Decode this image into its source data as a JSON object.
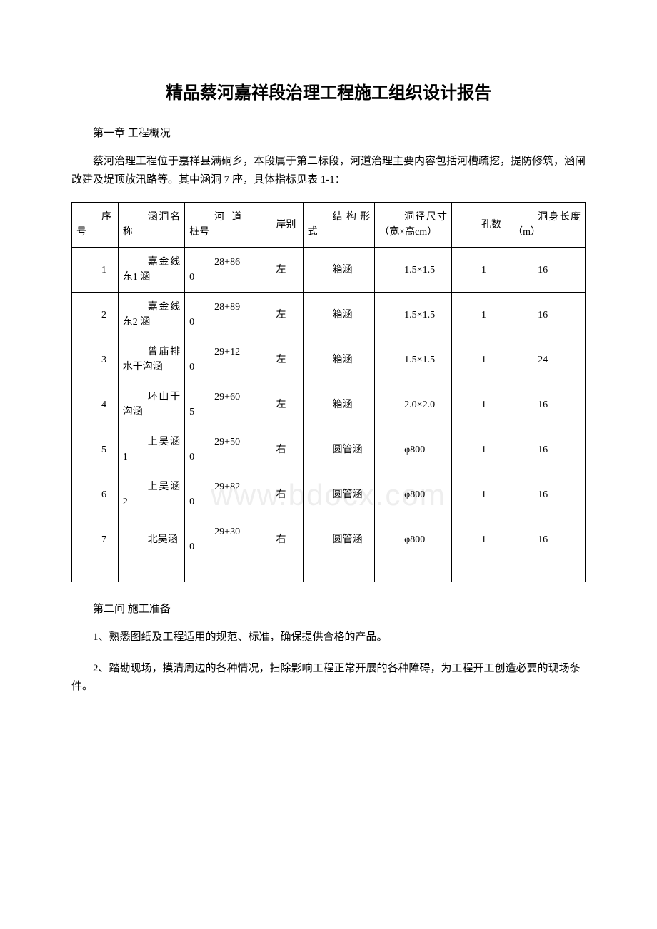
{
  "title": "精品蔡河嘉祥段治理工程施工组织设计报告",
  "chapter1": "第一章 工程概况",
  "intro": "蔡河治理工程位于嘉祥县满硐乡，本段属于第二标段，河道治理主要内容包括河槽疏挖，提防修筑，涵闸改建及堤顶放汛路等。其中涵洞 7 座，具体指标见表 1-1：",
  "watermark": "www.bdocx.com",
  "table": {
    "headers": [
      "序号",
      "涵洞名称",
      "河道桩号",
      "岸别",
      "结构形式",
      "洞径尺寸（宽×高cm）",
      "孔数",
      "洞身长度（m）"
    ],
    "rows": [
      [
        "1",
        "嘉金线东1 涵",
        "28+860",
        "左",
        "箱涵",
        "1.5×1.5",
        "1",
        "16"
      ],
      [
        "2",
        "嘉金线东2 涵",
        "28+890",
        "左",
        "箱涵",
        "1.5×1.5",
        "1",
        "16"
      ],
      [
        "3",
        "曾庙排水干沟涵",
        "29+120",
        "左",
        "箱涵",
        "1.5×1.5",
        "1",
        "24"
      ],
      [
        "4",
        "环山干沟涵",
        "29+605",
        "左",
        "箱涵",
        "2.0×2.0",
        "1",
        "16"
      ],
      [
        "5",
        "上吴涵 1",
        "29+500",
        "右",
        "圆管涵",
        "φ800",
        "1",
        "16"
      ],
      [
        "6",
        "上吴涵 2",
        "29+820",
        "右",
        "圆管涵",
        "φ800",
        "1",
        "16"
      ],
      [
        "7",
        "北吴涵",
        "29+300",
        "右",
        "圆管涵",
        "φ800",
        "1",
        "16"
      ]
    ]
  },
  "chapter2": "第二间 施工准备",
  "para1": "1、熟悉图纸及工程适用的规范、标准，确保提供合格的产品。",
  "para2": "2、踏勘现场，摸清周边的各种情况，扫除影响工程正常开展的各种障碍，为工程开工创造必要的现场条件。"
}
